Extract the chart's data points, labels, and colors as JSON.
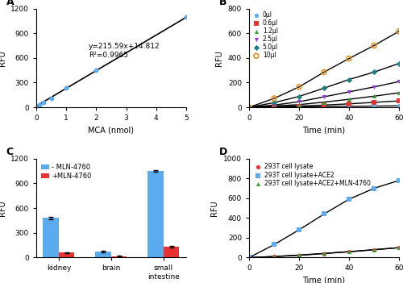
{
  "A": {
    "x_data": [
      0,
      0.1,
      0.25,
      0.5,
      1.0,
      2.0,
      5.0
    ],
    "y_data": [
      0,
      30,
      60,
      110,
      240,
      450,
      1093
    ],
    "fit_x": [
      0,
      5.0
    ],
    "fit_y": [
      14.812,
      1092.762
    ],
    "equation": "y=215.59x+14.812",
    "r2": "R²=0.9965",
    "xlabel": "MCA (nmol)",
    "ylabel": "RFU",
    "ylim": [
      0,
      1200
    ],
    "xlim": [
      0,
      5
    ],
    "yticks": [
      0,
      300,
      600,
      900,
      1200
    ],
    "xticks": [
      0,
      1,
      2,
      3,
      4,
      5
    ],
    "dot_color": "#5AACEE",
    "label": "A"
  },
  "B": {
    "time": [
      0,
      10,
      20,
      30,
      40,
      50,
      60
    ],
    "series": {
      "0μl": [
        0,
        2,
        4,
        6,
        8,
        10,
        12
      ],
      "0.6μl": [
        0,
        5,
        10,
        18,
        28,
        40,
        52
      ],
      "1.2μl": [
        0,
        10,
        22,
        42,
        65,
        90,
        118
      ],
      "2.5μl": [
        0,
        18,
        45,
        85,
        125,
        165,
        208
      ],
      "5.0μl": [
        0,
        38,
        88,
        155,
        225,
        285,
        355
      ],
      "10μl": [
        0,
        72,
        165,
        285,
        395,
        500,
        615
      ]
    },
    "colors": {
      "0μl": "#5AACEE",
      "0.6μl": "#E83232",
      "1.2μl": "#33A332",
      "2.5μl": "#9B32E8",
      "5.0μl": "#1A8080",
      "10μl": "#E88C1A"
    },
    "markers": {
      "0μl": "o",
      "0.6μl": "s",
      "1.2μl": "^",
      "2.5μl": "v",
      "5.0μl": "D",
      "10μl": "o"
    },
    "marker_filled": {
      "0μl": true,
      "0.6μl": true,
      "1.2μl": true,
      "2.5μl": true,
      "5.0μl": true,
      "10μl": false
    },
    "xlabel": "Time (min)",
    "ylabel": "RFU",
    "ylim": [
      0,
      800
    ],
    "xlim": [
      0,
      60
    ],
    "yticks": [
      0,
      200,
      400,
      600,
      800
    ],
    "xticks": [
      0,
      20,
      40,
      60
    ],
    "label": "B"
  },
  "C": {
    "categories": [
      "kidney",
      "brain",
      "small\nintestine"
    ],
    "minus_mln": [
      480,
      75,
      1050
    ],
    "plus_mln": [
      60,
      15,
      130
    ],
    "minus_err": [
      12,
      8,
      10
    ],
    "plus_err": [
      6,
      4,
      8
    ],
    "color_minus": "#5AACEE",
    "color_plus": "#E83232",
    "ylabel": "RFU",
    "ylim": [
      0,
      1200
    ],
    "yticks": [
      0,
      300,
      600,
      900,
      1200
    ],
    "legend_minus": "- MLN-4760",
    "legend_plus": "+MLN-4760",
    "label": "C"
  },
  "D": {
    "time": [
      0,
      10,
      20,
      30,
      40,
      50,
      60
    ],
    "series": {
      "293T cell lysate": [
        0,
        10,
        22,
        40,
        60,
        80,
        100
      ],
      "293T cell lysate+ACE2": [
        0,
        130,
        280,
        440,
        590,
        700,
        780
      ],
      "293T cell lysate+ACE2+MLN-4760": [
        0,
        10,
        25,
        42,
        58,
        78,
        100
      ]
    },
    "colors": {
      "293T cell lysate": "#E83232",
      "293T cell lysate+ACE2": "#5AACEE",
      "293T cell lysate+ACE2+MLN-4760": "#33A332"
    },
    "markers": {
      "293T cell lysate": "o",
      "293T cell lysate+ACE2": "s",
      "293T cell lysate+ACE2+MLN-4760": "^"
    },
    "xlabel": "Time (min)",
    "ylabel": "RFU",
    "ylim": [
      0,
      1000
    ],
    "xlim": [
      0,
      60
    ],
    "yticks": [
      0,
      200,
      400,
      600,
      800,
      1000
    ],
    "xticks": [
      0,
      20,
      40,
      60
    ],
    "label": "D"
  }
}
